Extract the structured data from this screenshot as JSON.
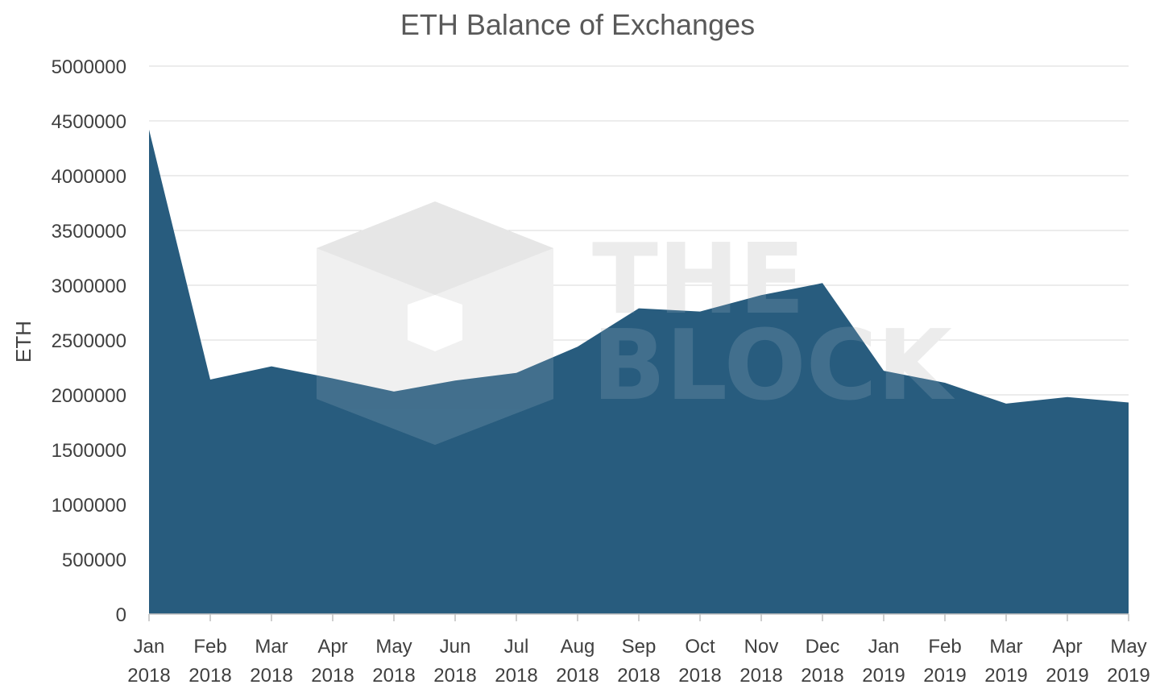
{
  "chart_data": {
    "type": "area",
    "title": "ETH Balance of Exchanges",
    "xlabel": "",
    "ylabel": "ETH",
    "ylim": [
      0,
      5000000
    ],
    "yticks": [
      "0",
      "500000",
      "1000000",
      "1500000",
      "2000000",
      "2500000",
      "3000000",
      "3500000",
      "4000000",
      "4500000",
      "5000000"
    ],
    "grid": true,
    "legend": "none",
    "color": "#285C7E",
    "categories": [
      "Jan 2018",
      "Feb 2018",
      "Mar 2018",
      "Apr 2018",
      "May 2018",
      "Jun 2018",
      "Jul 2018",
      "Aug 2018",
      "Sep 2018",
      "Oct 2018",
      "Nov 2018",
      "Dec 2018",
      "Jan 2019",
      "Feb 2019",
      "Mar 2019",
      "Apr 2019",
      "May 2019"
    ],
    "x": [
      "2018-01-01",
      "2018-02-01",
      "2018-03-01",
      "2018-04-01",
      "2018-05-01",
      "2018-06-01",
      "2018-07-01",
      "2018-08-01",
      "2018-09-01",
      "2018-10-01",
      "2018-11-01",
      "2018-12-01",
      "2019-01-01",
      "2019-02-01",
      "2019-03-01",
      "2019-04-01",
      "2019-05-01"
    ],
    "series": [
      {
        "x": [
          "2018-01-01",
          "2018-02-01",
          "2018-03-01",
          "2018-04-01",
          "2018-05-01",
          "2018-06-01",
          "2018-07-01",
          "2018-08-01",
          "2018-09-01",
          "2018-10-01",
          "2018-11-01",
          "2018-12-01",
          "2019-01-01",
          "2019-02-01",
          "2019-03-01",
          "2019-04-01",
          "2019-05-01"
        ],
        "values": [
          4420000,
          2140000,
          2260000,
          2150000,
          2030000,
          2130000,
          2200000,
          2440000,
          2790000,
          2760000,
          2910000,
          3020000,
          2220000,
          2110000,
          1920000,
          1980000,
          1930000
        ]
      }
    ],
    "watermark": {
      "line1": "THE",
      "line2": "BLOCK"
    }
  }
}
